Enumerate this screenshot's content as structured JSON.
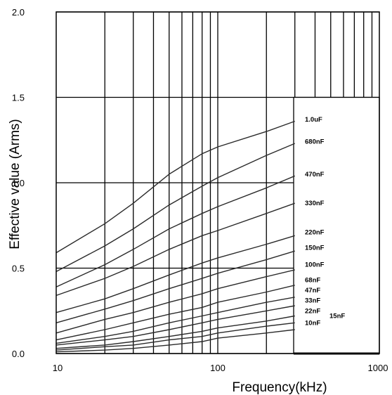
{
  "chart_data": {
    "type": "line",
    "title": "",
    "xlabel": "Frequency(kHz)",
    "ylabel": "Effective value (Arms)",
    "x_scale": "log",
    "xlim": [
      10,
      1000
    ],
    "ylim": [
      0.0,
      2.0
    ],
    "x_ticks": [
      10,
      100,
      1000
    ],
    "x_tick_labels": [
      "10",
      "100",
      "1000"
    ],
    "y_ticks": [
      0.0,
      0.5,
      1.0,
      1.5,
      2.0
    ],
    "y_tick_labels": [
      "0.0",
      "0.5",
      "1.0",
      "1.5",
      "2.0"
    ],
    "grid": true,
    "legend": "none (labels at right end of each curve)",
    "x": [
      10,
      20,
      30,
      50,
      80,
      100,
      200,
      300
    ],
    "series": [
      {
        "name": "1.0uF",
        "values": [
          0.59,
          0.76,
          0.88,
          1.05,
          1.17,
          1.21,
          1.3,
          1.36
        ]
      },
      {
        "name": "680nF",
        "values": [
          0.48,
          0.63,
          0.73,
          0.87,
          0.98,
          1.03,
          1.16,
          1.23
        ]
      },
      {
        "name": "470nF",
        "values": [
          0.39,
          0.52,
          0.61,
          0.73,
          0.82,
          0.86,
          0.97,
          1.04
        ]
      },
      {
        "name": "330nF",
        "values": [
          0.34,
          0.44,
          0.51,
          0.61,
          0.69,
          0.72,
          0.82,
          0.88
        ]
      },
      {
        "name": "220nF",
        "values": [
          0.24,
          0.32,
          0.38,
          0.46,
          0.53,
          0.56,
          0.64,
          0.69
        ]
      },
      {
        "name": "150nF",
        "values": [
          0.18,
          0.26,
          0.31,
          0.38,
          0.44,
          0.47,
          0.55,
          0.6
        ]
      },
      {
        "name": "100nF",
        "values": [
          0.12,
          0.2,
          0.24,
          0.3,
          0.35,
          0.38,
          0.45,
          0.49
        ]
      },
      {
        "name": "68nF",
        "values": [
          0.08,
          0.14,
          0.18,
          0.23,
          0.27,
          0.3,
          0.36,
          0.4
        ]
      },
      {
        "name": "47nF",
        "values": [
          0.06,
          0.1,
          0.13,
          0.18,
          0.22,
          0.24,
          0.3,
          0.33
        ]
      },
      {
        "name": "33nF",
        "values": [
          0.05,
          0.08,
          0.1,
          0.14,
          0.18,
          0.2,
          0.25,
          0.28
        ]
      },
      {
        "name": "22nF",
        "values": [
          0.03,
          0.05,
          0.07,
          0.1,
          0.13,
          0.15,
          0.19,
          0.22
        ]
      },
      {
        "name": "15nF",
        "values": [
          0.02,
          0.04,
          0.05,
          0.08,
          0.1,
          0.12,
          0.16,
          0.18
        ]
      },
      {
        "name": "10nF",
        "values": [
          0.01,
          0.02,
          0.03,
          0.05,
          0.07,
          0.09,
          0.12,
          0.14
        ]
      }
    ],
    "labels": [
      {
        "text": "1.0uF",
        "y": 1.37
      },
      {
        "text": "680nF",
        "y": 1.24
      },
      {
        "text": "470nF",
        "y": 1.05
      },
      {
        "text": "330nF",
        "y": 0.88
      },
      {
        "text": "220nF",
        "y": 0.71
      },
      {
        "text": "150nF",
        "y": 0.62
      },
      {
        "text": "100nF",
        "y": 0.52
      },
      {
        "text": "68nF",
        "y": 0.43
      },
      {
        "text": "47nF",
        "y": 0.37
      },
      {
        "text": "33nF",
        "y": 0.31
      },
      {
        "text": "22nF",
        "y": 0.25
      },
      {
        "text": "15nF",
        "y": 0.22
      },
      {
        "text": "10nF",
        "y": 0.18
      }
    ]
  }
}
